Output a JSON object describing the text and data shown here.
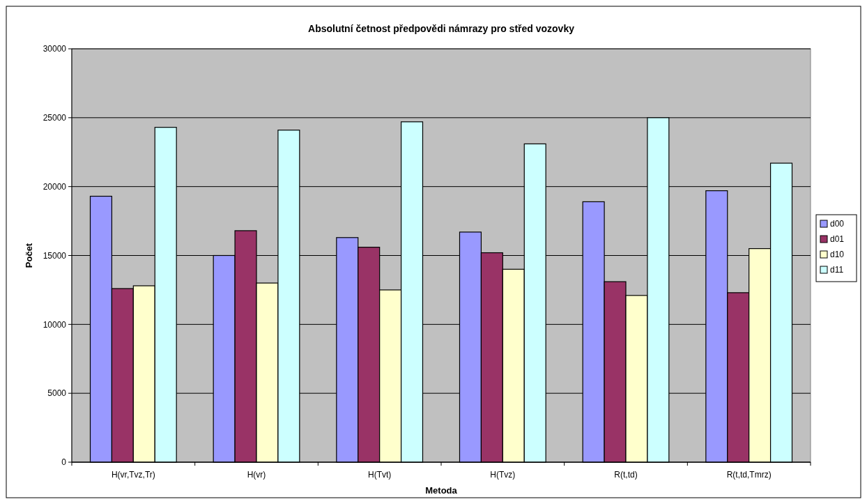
{
  "chart_data": {
    "type": "bar",
    "title": "Absolutní četnost předpovědi námrazy pro střed vozovky",
    "xlabel": "Metoda",
    "ylabel": "Počet",
    "categories": [
      "H(vr,Tvz,Tr)",
      "H(vr)",
      "H(Tvt)",
      "H(Tvz)",
      "R(t,td)",
      "R(t,td,Tmrz)"
    ],
    "series": [
      {
        "name": "d00",
        "color": "#9999ff",
        "values": [
          19300,
          15000,
          16300,
          16700,
          18900,
          19700
        ]
      },
      {
        "name": "d01",
        "color": "#993366",
        "values": [
          12600,
          16800,
          15600,
          15200,
          13100,
          12300
        ]
      },
      {
        "name": "d10",
        "color": "#ffffcc",
        "values": [
          12800,
          13000,
          12500,
          14000,
          12100,
          15500
        ]
      },
      {
        "name": "d11",
        "color": "#ccffff",
        "values": [
          24300,
          24100,
          24700,
          23100,
          25000,
          21700
        ]
      }
    ],
    "ylim": [
      0,
      30000
    ],
    "yticks": [
      0,
      5000,
      10000,
      15000,
      20000,
      25000,
      30000
    ],
    "grid": "y",
    "legend": "right"
  }
}
